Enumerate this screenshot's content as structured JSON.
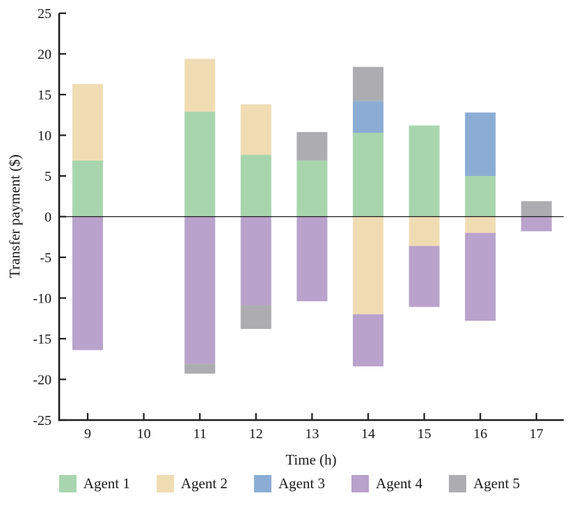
{
  "chart_data": {
    "type": "bar",
    "stacked": true,
    "title": "",
    "xlabel": "Time (h)",
    "ylabel": "Transfer payment ($)",
    "categories": [
      9,
      10,
      11,
      12,
      13,
      14,
      15,
      16,
      17
    ],
    "series": [
      {
        "name": "Agent 1",
        "color": "#a8d5ae",
        "values": [
          6.9,
          0,
          12.9,
          7.6,
          6.9,
          10.3,
          11.2,
          5.0,
          0
        ]
      },
      {
        "name": "Agent 2",
        "color": "#f0dcb3",
        "values": [
          9.4,
          0,
          6.5,
          6.2,
          0,
          -12.0,
          -3.6,
          -2.0,
          0
        ]
      },
      {
        "name": "Agent 3",
        "color": "#8badd4",
        "values": [
          0,
          0,
          0,
          0,
          0,
          3.9,
          0,
          7.8,
          0
        ]
      },
      {
        "name": "Agent 4",
        "color": "#b9a2cb",
        "values": [
          -16.4,
          0,
          -18.1,
          -10.9,
          -10.4,
          -6.4,
          -7.5,
          -10.8,
          -1.8
        ]
      },
      {
        "name": "Agent 5",
        "color": "#adadb1",
        "values": [
          0,
          0,
          -1.2,
          -2.9,
          3.5,
          4.2,
          0,
          0,
          1.9
        ]
      }
    ],
    "ylim": [
      -25,
      25
    ],
    "ytick_step": 5,
    "grid": false,
    "zero_line": true,
    "legend_position": "bottom",
    "axis_color": "#1c1c1c"
  }
}
